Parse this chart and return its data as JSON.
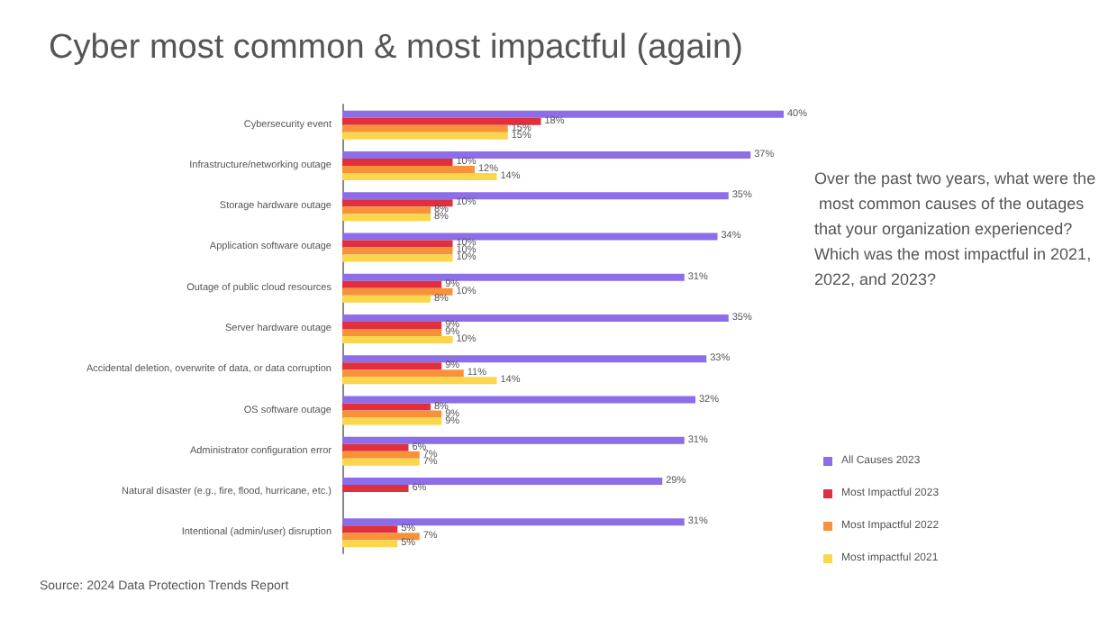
{
  "chart_data": {
    "type": "bar",
    "orientation": "horizontal",
    "title": "Cyber most common & most impactful (again)",
    "subtitle": "Over the past two years, what were the most common causes of the outages that your organization experienced? Which was the most impactful in 2021, 2022, and 2023?",
    "annotations": [
      "Source: 2024 Data Protection Trends Report"
    ],
    "categories": [
      "Cybersecurity event",
      "Infrastructure/networking outage",
      "Storage hardware outage",
      "Application software outage",
      "Outage of public cloud resources",
      "Server hardware outage",
      "Accidental deletion, overwrite of data, or data corruption",
      "OS software outage",
      "Administrator configuration error",
      "Natural disaster (e.g., fire, flood, hurricane, etc.)",
      "Intentional (admin/user) disruption"
    ],
    "series": [
      {
        "name": "All Causes 2023",
        "color": "#8b6ee8",
        "values": [
          40,
          37,
          35,
          34,
          31,
          35,
          33,
          32,
          31,
          29,
          31
        ],
        "value_labels": [
          "40%",
          "37%",
          "35%",
          "34%",
          "31%",
          "35%",
          "33%",
          "32%",
          "31%",
          "29%",
          "31%"
        ]
      },
      {
        "name": "Most Impactful 2023",
        "color": "#e0303e",
        "values": [
          18,
          10,
          10,
          10,
          9,
          9,
          9,
          8,
          6,
          6,
          5
        ],
        "value_labels": [
          "18%",
          "10%",
          "10%",
          "10%",
          "9%",
          "9%",
          "9%",
          "8%",
          "6%",
          "6%",
          "5%"
        ]
      },
      {
        "name": "Most Impactful 2022",
        "color": "#f7923a",
        "values": [
          15,
          12,
          8,
          10,
          10,
          9,
          11,
          9,
          7,
          null,
          7
        ],
        "value_labels": [
          "15%",
          "12%",
          "8%",
          "10%",
          "10%",
          "9%",
          "11%",
          "9%",
          "7%",
          null,
          "7%"
        ]
      },
      {
        "name": "Most impactful 2021",
        "color": "#fbd54b",
        "values": [
          15,
          14,
          8,
          10,
          8,
          10,
          14,
          9,
          7,
          null,
          5
        ],
        "value_labels": [
          "15%",
          "14%",
          "8%",
          "10%",
          "8%",
          "10%",
          "14%",
          "9%",
          "7%",
          null,
          "5%"
        ]
      }
    ],
    "legend": "right"
  }
}
